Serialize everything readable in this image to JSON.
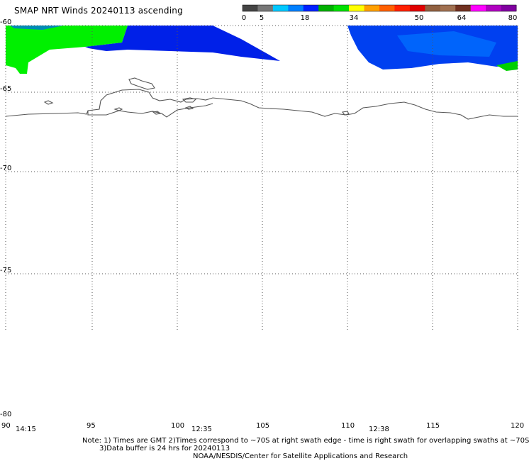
{
  "title": "SMAP NRT Winds 20240113 ascending",
  "colorbar": {
    "labels": [
      "0",
      "5",
      "18",
      "34",
      "50",
      "64",
      "80"
    ],
    "segments": [
      "#444444",
      "#777777",
      "#00c8ff",
      "#0080ff",
      "#0020ff",
      "#00b000",
      "#00e000",
      "#ffff00",
      "#ffa000",
      "#ff6000",
      "#ff2000",
      "#e00000",
      "#906040",
      "#a07050",
      "#703020",
      "#ff00ff",
      "#b000c0",
      "#8000a0"
    ]
  },
  "lat_labels": [
    "-60",
    "-65",
    "-70",
    "-75",
    "-80"
  ],
  "lon_labels": [
    "90",
    "95",
    "100",
    "105",
    "110",
    "115",
    "120"
  ],
  "time_labels": [
    "14:15",
    "12:35",
    "12:38"
  ],
  "notes": {
    "line1": "Note: 1) Times are GMT 2)Times correspond to ~70S at right swath edge - time is right swath for overlapping swaths at ~70S",
    "line2": "3)Data buffer is 24 hrs for 20240113",
    "line3": "NOAA/NESDIS/Center for Satellite Applications and Research"
  },
  "colors": {
    "wind_green": "#00f000",
    "wind_blue_dark": "#0020e8",
    "wind_blue_light": "#0060ff",
    "coast": "#555555"
  }
}
